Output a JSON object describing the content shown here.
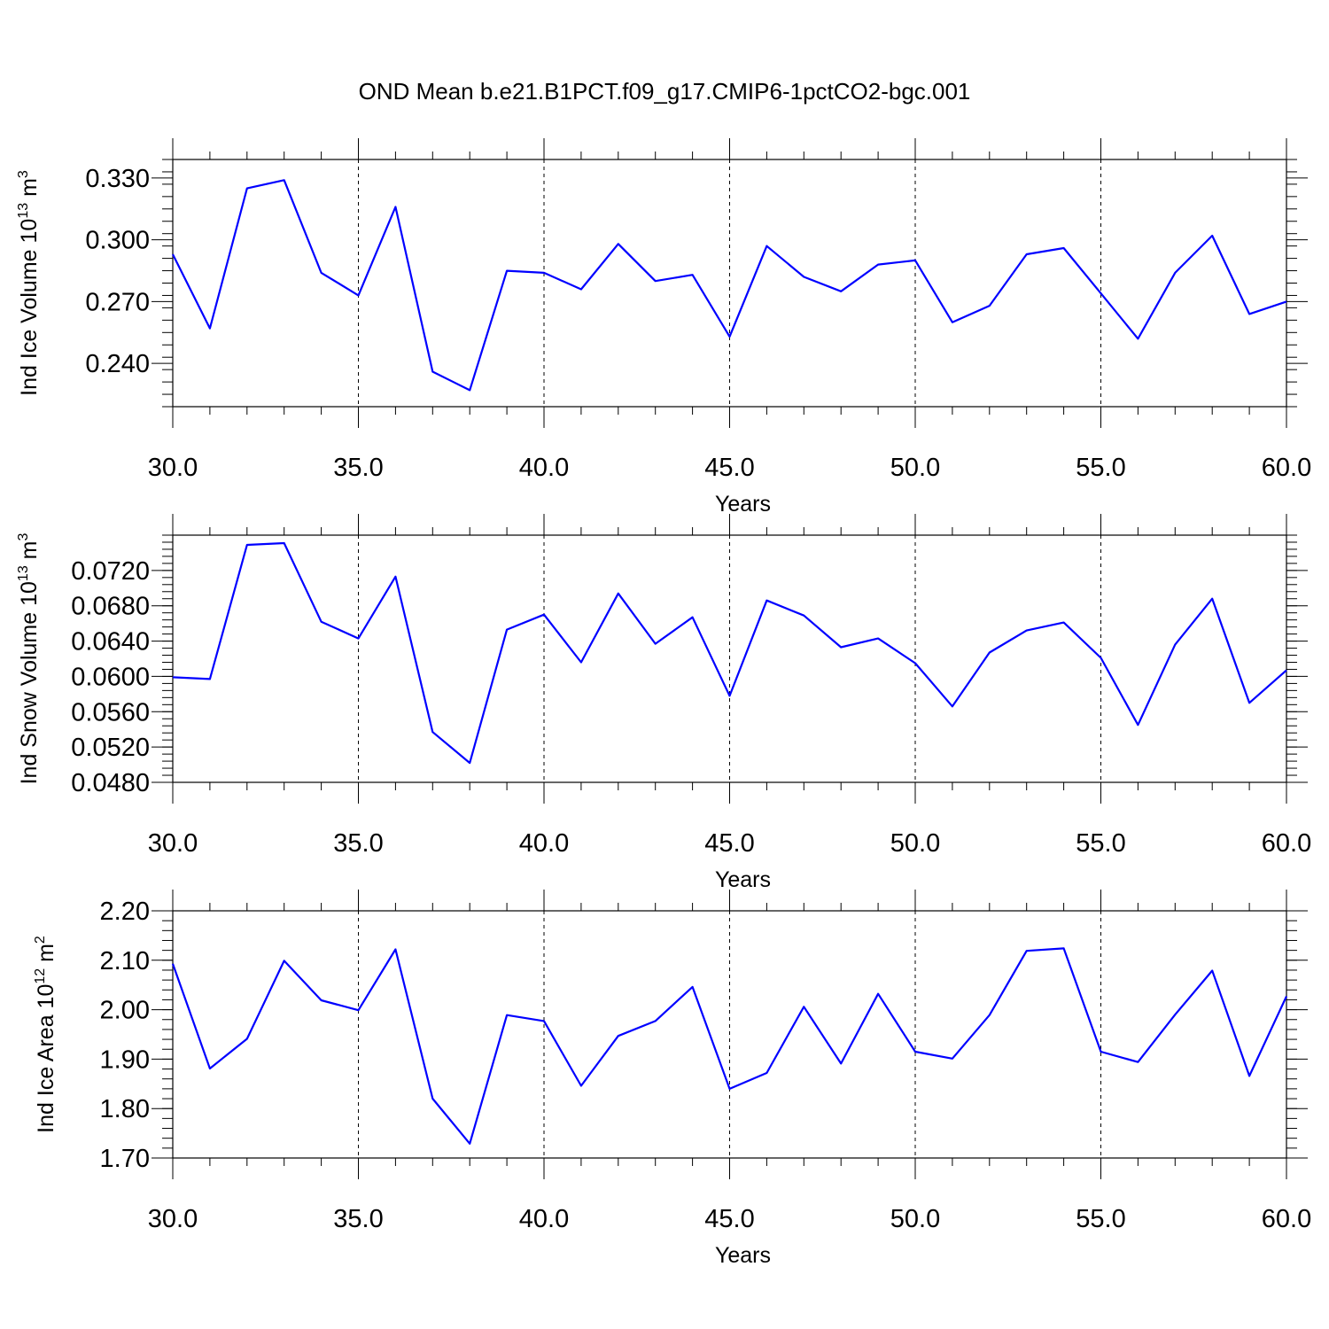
{
  "figure_title": "OND Mean b.e21.B1PCT.f09_g17.CMIP6-1pctCO2-bgc.001",
  "chart_data": [
    {
      "type": "line",
      "title": "",
      "xlabel": "Years",
      "ylabel_base": "Ind Ice Volume 10",
      "ylabel_exp": "13",
      "ylabel_unit": " m",
      "ylabel_unit_exp": "3",
      "xlim": [
        30,
        60
      ],
      "ylim": [
        0.219,
        0.339
      ],
      "xticks": [
        30,
        35,
        40,
        45,
        50,
        55,
        60
      ],
      "xtick_labels": [
        "30.0",
        "35.0",
        "40.0",
        "45.0",
        "50.0",
        "55.0",
        "60.0"
      ],
      "yticks": [
        0.24,
        0.27,
        0.3,
        0.33
      ],
      "ytick_labels": [
        "0.240",
        "0.270",
        "0.300",
        "0.330"
      ],
      "y_minor_step": 0.006,
      "vertical_grid": "dashed",
      "series": [
        {
          "color": "#0000ff",
          "x": [
            30,
            31,
            32,
            33,
            34,
            35,
            36,
            37,
            38,
            39,
            40,
            41,
            42,
            43,
            44,
            45,
            46,
            47,
            48,
            49,
            50,
            51,
            52,
            53,
            54,
            55,
            56,
            57,
            58,
            59,
            60
          ],
          "y": [
            0.293,
            0.257,
            0.325,
            0.329,
            0.284,
            0.273,
            0.316,
            0.236,
            0.227,
            0.285,
            0.284,
            0.276,
            0.298,
            0.28,
            0.283,
            0.253,
            0.297,
            0.282,
            0.275,
            0.288,
            0.29,
            0.26,
            0.268,
            0.293,
            0.296,
            0.274,
            0.252,
            0.284,
            0.302,
            0.264,
            0.27
          ]
        }
      ]
    },
    {
      "type": "line",
      "title": "",
      "xlabel": "Years",
      "ylabel_base": "Ind Snow Volume 10",
      "ylabel_exp": "13",
      "ylabel_unit": " m",
      "ylabel_unit_exp": "3",
      "xlim": [
        30,
        60
      ],
      "ylim": [
        0.048,
        0.076
      ],
      "xticks": [
        30,
        35,
        40,
        45,
        50,
        55,
        60
      ],
      "xtick_labels": [
        "30.0",
        "35.0",
        "40.0",
        "45.0",
        "50.0",
        "55.0",
        "60.0"
      ],
      "yticks": [
        0.048,
        0.052,
        0.056,
        0.06,
        0.064,
        0.068,
        0.072
      ],
      "ytick_labels": [
        "0.0480",
        "0.0520",
        "0.0560",
        "0.0600",
        "0.0640",
        "0.0680",
        "0.0720"
      ],
      "y_minor_step": 0.0008,
      "vertical_grid": "dashed",
      "series": [
        {
          "color": "#0000ff",
          "x": [
            30,
            31,
            32,
            33,
            34,
            35,
            36,
            37,
            38,
            39,
            40,
            41,
            42,
            43,
            44,
            45,
            46,
            47,
            48,
            49,
            50,
            51,
            52,
            53,
            54,
            55,
            56,
            57,
            58,
            59,
            60
          ],
          "y": [
            0.0599,
            0.0597,
            0.0749,
            0.0751,
            0.0662,
            0.0643,
            0.0713,
            0.0537,
            0.0502,
            0.0653,
            0.067,
            0.0616,
            0.0694,
            0.0637,
            0.0667,
            0.0578,
            0.0686,
            0.0669,
            0.0633,
            0.0643,
            0.0615,
            0.0566,
            0.0627,
            0.0652,
            0.0661,
            0.0621,
            0.0545,
            0.0636,
            0.0688,
            0.057,
            0.0607
          ]
        }
      ]
    },
    {
      "type": "line",
      "title": "",
      "xlabel": "Years",
      "ylabel_base": "Ind Ice Area 10",
      "ylabel_exp": "12",
      "ylabel_unit": " m",
      "ylabel_unit_exp": "2",
      "xlim": [
        30,
        60
      ],
      "ylim": [
        1.7,
        2.2
      ],
      "xticks": [
        30,
        35,
        40,
        45,
        50,
        55,
        60
      ],
      "xtick_labels": [
        "30.0",
        "35.0",
        "40.0",
        "45.0",
        "50.0",
        "55.0",
        "60.0"
      ],
      "yticks": [
        1.7,
        1.8,
        1.9,
        2.0,
        2.1,
        2.2
      ],
      "ytick_labels": [
        "1.70",
        "1.80",
        "1.90",
        "2.00",
        "2.10",
        "2.20"
      ],
      "y_minor_step": 0.02,
      "vertical_grid": "dashed",
      "series": [
        {
          "color": "#0000ff",
          "x": [
            30,
            31,
            32,
            33,
            34,
            35,
            36,
            37,
            38,
            39,
            40,
            41,
            42,
            43,
            44,
            45,
            46,
            47,
            48,
            49,
            50,
            51,
            52,
            53,
            54,
            55,
            56,
            57,
            58,
            59,
            60
          ],
          "y": [
            2.093,
            1.881,
            1.941,
            2.099,
            2.019,
            1.999,
            2.122,
            1.82,
            1.729,
            1.989,
            1.977,
            1.846,
            1.947,
            1.977,
            2.046,
            1.84,
            1.872,
            2.006,
            1.891,
            2.032,
            1.915,
            1.901,
            1.989,
            2.119,
            2.124,
            1.915,
            1.894,
            1.99,
            2.079,
            1.866,
            2.027
          ]
        }
      ]
    }
  ]
}
